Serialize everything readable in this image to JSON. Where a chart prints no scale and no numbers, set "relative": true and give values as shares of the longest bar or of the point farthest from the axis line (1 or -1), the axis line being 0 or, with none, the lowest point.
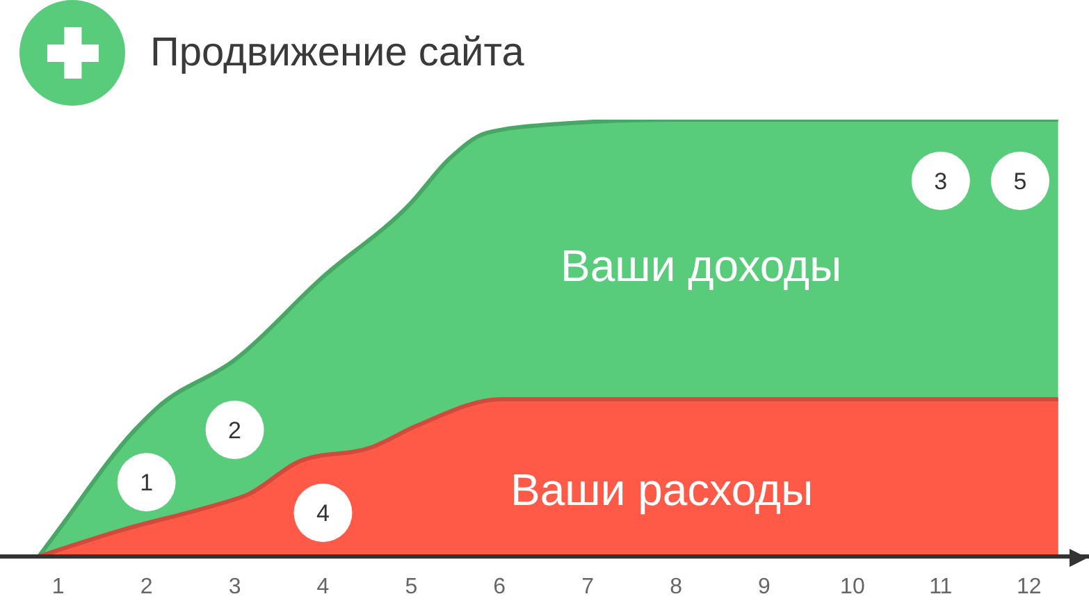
{
  "chart_data": {
    "type": "area",
    "title": "Продвижение сайта",
    "relative": true,
    "xlim": [
      0.34,
      12.68
    ],
    "xticks": [
      1,
      2,
      3,
      4,
      5,
      6,
      7,
      8,
      9,
      10,
      11,
      12
    ],
    "series": [
      {
        "name": "Ваши доходы",
        "color": "#58cc7a",
        "x": [
          0.78,
          1,
          1.87,
          2.12,
          3,
          4,
          5,
          5.43,
          5.86,
          6.65,
          8,
          10,
          12,
          12.33
        ],
        "values": [
          0,
          0.06,
          0.29,
          0.34,
          0.45,
          0.64,
          0.81,
          0.91,
          0.97,
          0.99,
          1,
          1,
          1,
          1
        ]
      },
      {
        "name": "Ваши расходы",
        "color": "#ff5a48",
        "x": [
          0.78,
          1.71,
          2.82,
          3.13,
          3.76,
          4.55,
          5.07,
          6.02,
          8,
          10,
          12,
          12.33
        ],
        "values": [
          0,
          0.06,
          0.12,
          0.14,
          0.22,
          0.25,
          0.3,
          0.36,
          0.36,
          0.36,
          0.36,
          0.36
        ]
      }
    ],
    "annotations": [
      {
        "text": "1",
        "x": 2,
        "y": 0.17
      },
      {
        "text": "2",
        "x": 3,
        "y": 0.29
      },
      {
        "text": "3",
        "x": 11,
        "y": 0.86
      },
      {
        "text": "4",
        "x": 4,
        "y": 0.1
      },
      {
        "text": "5",
        "x": 11.9,
        "y": 0.86
      }
    ]
  }
}
